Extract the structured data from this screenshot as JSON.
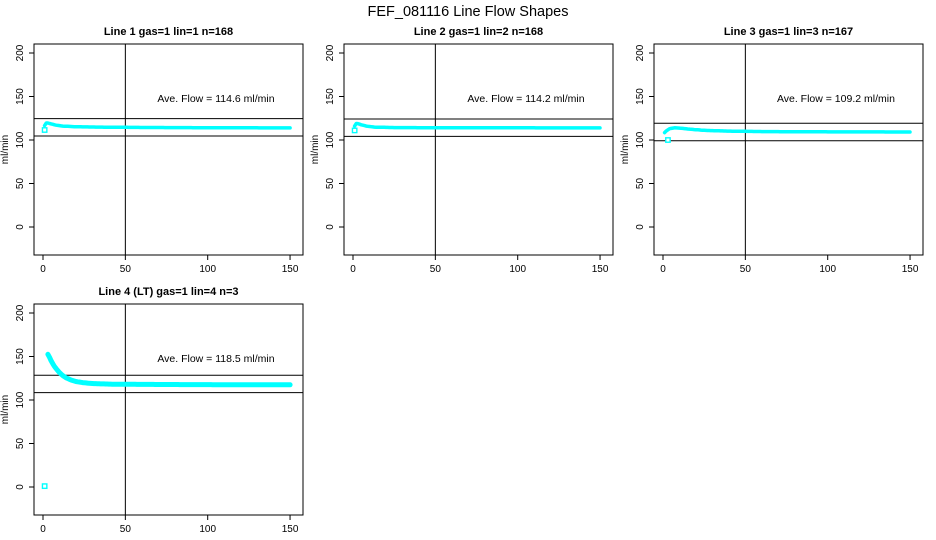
{
  "title": "FEF_081116  Line Flow Shapes",
  "colors": {
    "trace": "#00FFFF",
    "axis": "#000000",
    "background": "#FFFFFF"
  },
  "chart_data": [
    {
      "type": "scatter",
      "row": 0,
      "col": 0,
      "title": "Line 1 gas=1 lin=1 n=168",
      "n": 168,
      "ave_flow": 114.6,
      "ave_flow_label": "Ave. Flow =  114.6  ml/min",
      "ylabel": "ml/min",
      "xlabel": "",
      "x_ticks": [
        0,
        50,
        100,
        150
      ],
      "y_ticks": [
        0,
        50,
        100,
        150,
        200
      ],
      "xlim": [
        -5.5,
        157.9
      ],
      "ylim": [
        -32,
        210.5
      ],
      "grid": false,
      "vline_x": 50,
      "hlines": [
        104.6,
        124.6
      ],
      "series_color": "#00FFFF",
      "trace_width": 3.5,
      "profile": [
        [
          1,
          116.5
        ],
        [
          2,
          119.5
        ],
        [
          3,
          119.5
        ],
        [
          5,
          118.5
        ],
        [
          8,
          117
        ],
        [
          12,
          116
        ],
        [
          20,
          115.2
        ],
        [
          35,
          114.8
        ],
        [
          60,
          114.4
        ],
        [
          90,
          114.2
        ],
        [
          120,
          114.0
        ],
        [
          150,
          113.9
        ]
      ],
      "outliers": [
        [
          1,
          111.5
        ]
      ]
    },
    {
      "type": "scatter",
      "row": 0,
      "col": 1,
      "title": "Line 2 gas=1 lin=2 n=168",
      "n": 168,
      "ave_flow": 114.2,
      "ave_flow_label": "Ave. Flow =  114.2  ml/min",
      "ylabel": "ml/min",
      "xlabel": "",
      "x_ticks": [
        0,
        50,
        100,
        150
      ],
      "y_ticks": [
        0,
        50,
        100,
        150,
        200
      ],
      "xlim": [
        -5.5,
        157.9
      ],
      "ylim": [
        -32,
        210.5
      ],
      "grid": false,
      "vline_x": 50,
      "hlines": [
        104.2,
        124.2
      ],
      "series_color": "#00FFFF",
      "trace_width": 3.5,
      "profile": [
        [
          1,
          116
        ],
        [
          2,
          119
        ],
        [
          3,
          118.8
        ],
        [
          5,
          117.5
        ],
        [
          8,
          116
        ],
        [
          13,
          114.8
        ],
        [
          25,
          114.3
        ],
        [
          50,
          114.1
        ],
        [
          90,
          114.0
        ],
        [
          150,
          113.9
        ]
      ],
      "outliers": [
        [
          1,
          111
        ]
      ]
    },
    {
      "type": "scatter",
      "row": 0,
      "col": 2,
      "title": "Line 3 gas=1 lin=3 n=167",
      "n": 167,
      "ave_flow": 109.2,
      "ave_flow_label": "Ave. Flow =  109.2  ml/min",
      "ylabel": "ml/min",
      "xlabel": "",
      "x_ticks": [
        0,
        50,
        100,
        150
      ],
      "y_ticks": [
        0,
        50,
        100,
        150,
        200
      ],
      "xlim": [
        -5.5,
        157.9
      ],
      "ylim": [
        -32,
        210.5
      ],
      "grid": false,
      "vline_x": 50,
      "hlines": [
        99.2,
        119.2
      ],
      "series_color": "#00FFFF",
      "trace_width": 3.5,
      "profile": [
        [
          1,
          108.5
        ],
        [
          2,
          110.5
        ],
        [
          4,
          113
        ],
        [
          7,
          114
        ],
        [
          11,
          113.5
        ],
        [
          17,
          112.3
        ],
        [
          26,
          111
        ],
        [
          40,
          110.2
        ],
        [
          60,
          109.7
        ],
        [
          90,
          109.4
        ],
        [
          120,
          109.3
        ],
        [
          150,
          109.2
        ]
      ],
      "outliers": [
        [
          3,
          100
        ]
      ]
    },
    {
      "type": "scatter",
      "row": 1,
      "col": 0,
      "title": "Line 4 (LT) gas=1 lin=4 n=3",
      "n": 3,
      "ave_flow": 118.5,
      "ave_flow_label": "Ave. Flow =  118.5  ml/min",
      "ylabel": "ml/min",
      "xlabel": "",
      "x_ticks": [
        0,
        50,
        100,
        150
      ],
      "y_ticks": [
        0,
        50,
        100,
        150,
        200
      ],
      "xlim": [
        -5.5,
        157.9
      ],
      "ylim": [
        -32,
        210.5
      ],
      "grid": false,
      "vline_x": 50,
      "hlines": [
        108.5,
        128.5
      ],
      "series_color": "#00FFFF",
      "trace_width": 5,
      "profile": [
        [
          3,
          152.5
        ],
        [
          4,
          149
        ],
        [
          5,
          145
        ],
        [
          6,
          141.5
        ],
        [
          7,
          138.5
        ],
        [
          8,
          136
        ],
        [
          10,
          131.5
        ],
        [
          12,
          128
        ],
        [
          14,
          125.5
        ],
        [
          17,
          123
        ],
        [
          20,
          121.3
        ],
        [
          24,
          120
        ],
        [
          28,
          119.2
        ],
        [
          34,
          118.6
        ],
        [
          42,
          118.2
        ],
        [
          55,
          118
        ],
        [
          75,
          117.8
        ],
        [
          110,
          117.6
        ],
        [
          150,
          117.5
        ]
      ],
      "outliers": [
        [
          1,
          1
        ]
      ]
    }
  ]
}
